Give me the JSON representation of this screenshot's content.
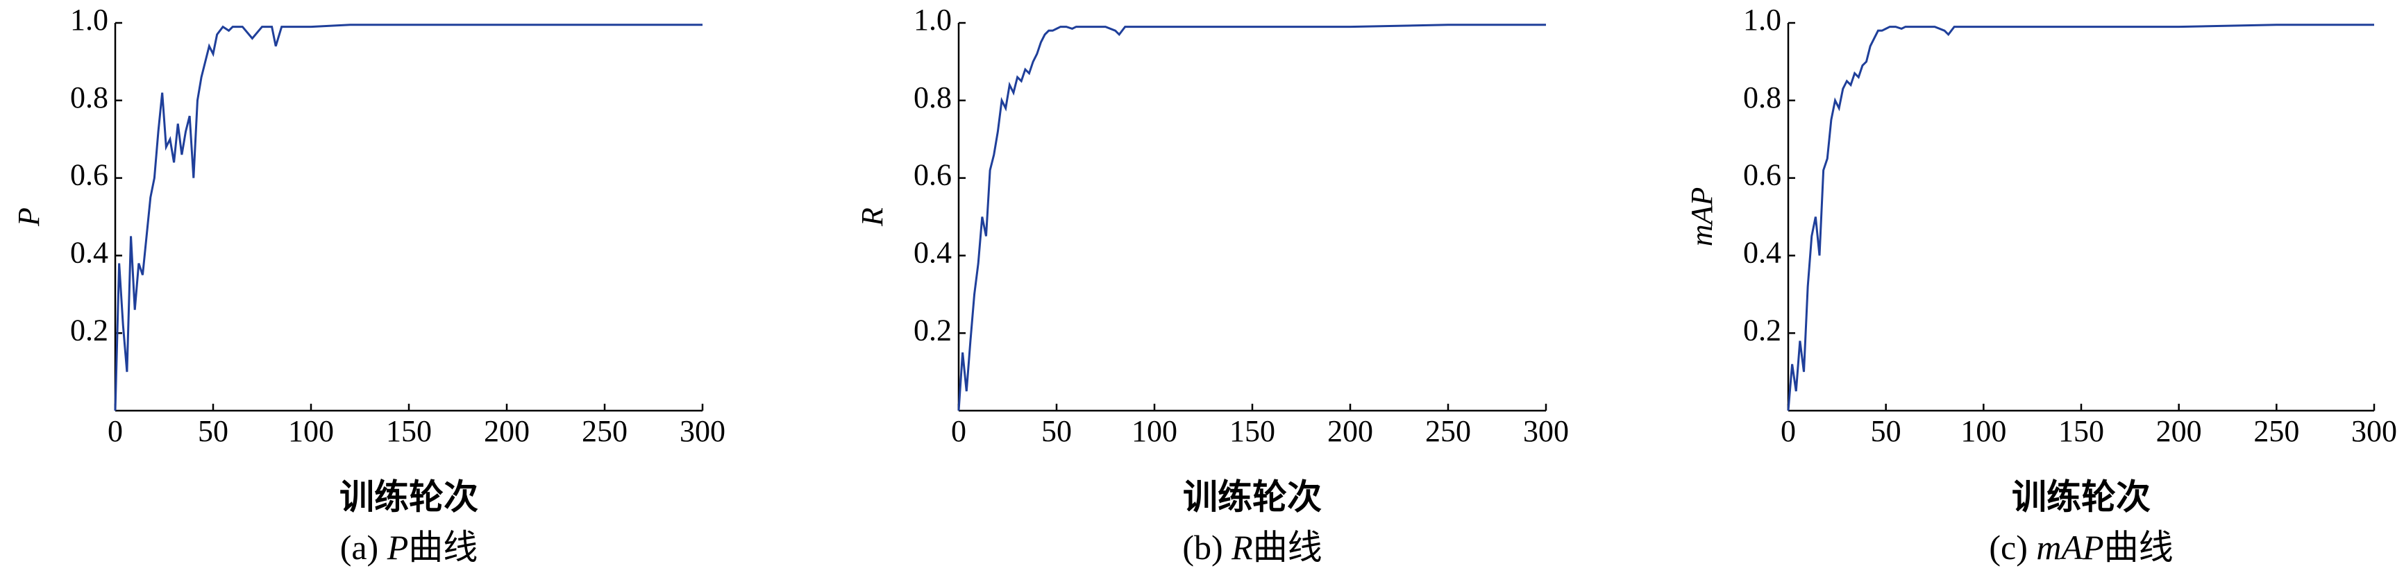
{
  "chart_data": [
    {
      "type": "line",
      "ylabel": "P",
      "xlabel": "训练轮次",
      "caption_prefix": "(a)",
      "caption_var": "P",
      "caption_suffix": "曲线",
      "color": "#1f3f9a",
      "x": [
        0,
        2,
        4,
        6,
        8,
        10,
        12,
        14,
        16,
        18,
        20,
        22,
        24,
        26,
        28,
        30,
        32,
        34,
        36,
        38,
        40,
        42,
        44,
        46,
        48,
        50,
        52,
        55,
        58,
        60,
        65,
        70,
        75,
        80,
        82,
        85,
        90,
        100,
        120,
        150,
        200,
        250,
        300
      ],
      "values": [
        0,
        0.38,
        0.22,
        0.1,
        0.45,
        0.26,
        0.38,
        0.35,
        0.45,
        0.55,
        0.6,
        0.72,
        0.82,
        0.68,
        0.7,
        0.64,
        0.74,
        0.66,
        0.72,
        0.76,
        0.6,
        0.8,
        0.86,
        0.9,
        0.94,
        0.92,
        0.97,
        0.99,
        0.98,
        0.99,
        0.99,
        0.96,
        0.99,
        0.99,
        0.94,
        0.99,
        0.99,
        0.99,
        0.995,
        0.995,
        0.995,
        0.995,
        0.995
      ],
      "xlim": [
        0,
        300
      ],
      "xticks": [
        0,
        50,
        100,
        150,
        200,
        250,
        300
      ],
      "ylim": [
        0,
        1
      ],
      "yticks": [
        0.2,
        0.4,
        0.6,
        0.8,
        {
          "value": 1,
          "label": "1.0"
        }
      ]
    },
    {
      "type": "line",
      "ylabel": "R",
      "xlabel": "训练轮次",
      "caption_prefix": "(b)",
      "caption_var": "R",
      "caption_suffix": "曲线",
      "color": "#1f3f9a",
      "x": [
        0,
        2,
        4,
        6,
        8,
        10,
        12,
        14,
        16,
        18,
        20,
        22,
        24,
        26,
        28,
        30,
        32,
        34,
        36,
        38,
        40,
        42,
        44,
        46,
        48,
        50,
        52,
        55,
        58,
        60,
        65,
        70,
        75,
        80,
        82,
        85,
        90,
        100,
        120,
        150,
        200,
        250,
        300
      ],
      "values": [
        0,
        0.15,
        0.05,
        0.18,
        0.3,
        0.38,
        0.5,
        0.45,
        0.62,
        0.66,
        0.72,
        0.8,
        0.78,
        0.84,
        0.82,
        0.86,
        0.85,
        0.88,
        0.87,
        0.9,
        0.92,
        0.95,
        0.97,
        0.98,
        0.98,
        0.985,
        0.99,
        0.99,
        0.985,
        0.99,
        0.99,
        0.99,
        0.99,
        0.98,
        0.97,
        0.99,
        0.99,
        0.99,
        0.99,
        0.99,
        0.99,
        0.995,
        0.995
      ],
      "xlim": [
        0,
        300
      ],
      "xticks": [
        0,
        50,
        100,
        150,
        200,
        250,
        300
      ],
      "ylim": [
        0,
        1
      ],
      "yticks": [
        0.2,
        0.4,
        0.6,
        0.8,
        {
          "value": 1,
          "label": "1.0"
        }
      ]
    },
    {
      "type": "line",
      "ylabel": "mAP",
      "xlabel": "训练轮次",
      "caption_prefix": "(c)",
      "caption_var": "mAP",
      "caption_suffix": "曲线",
      "color": "#1f3f9a",
      "x": [
        0,
        2,
        4,
        6,
        8,
        10,
        12,
        14,
        16,
        18,
        20,
        22,
        24,
        26,
        28,
        30,
        32,
        34,
        36,
        38,
        40,
        42,
        44,
        46,
        48,
        50,
        52,
        55,
        58,
        60,
        65,
        70,
        75,
        80,
        82,
        85,
        90,
        100,
        120,
        150,
        200,
        250,
        300
      ],
      "values": [
        0,
        0.12,
        0.05,
        0.18,
        0.1,
        0.32,
        0.45,
        0.5,
        0.4,
        0.62,
        0.65,
        0.75,
        0.8,
        0.78,
        0.83,
        0.85,
        0.84,
        0.87,
        0.86,
        0.89,
        0.9,
        0.94,
        0.96,
        0.98,
        0.98,
        0.985,
        0.99,
        0.99,
        0.985,
        0.99,
        0.99,
        0.99,
        0.99,
        0.98,
        0.97,
        0.99,
        0.99,
        0.99,
        0.99,
        0.99,
        0.99,
        0.995,
        0.995
      ],
      "xlim": [
        0,
        300
      ],
      "xticks": [
        0,
        50,
        100,
        150,
        200,
        250,
        300
      ],
      "ylim": [
        0,
        1
      ],
      "yticks": [
        0.2,
        0.4,
        0.6,
        0.8,
        {
          "value": 1,
          "label": "1.0"
        }
      ]
    }
  ]
}
